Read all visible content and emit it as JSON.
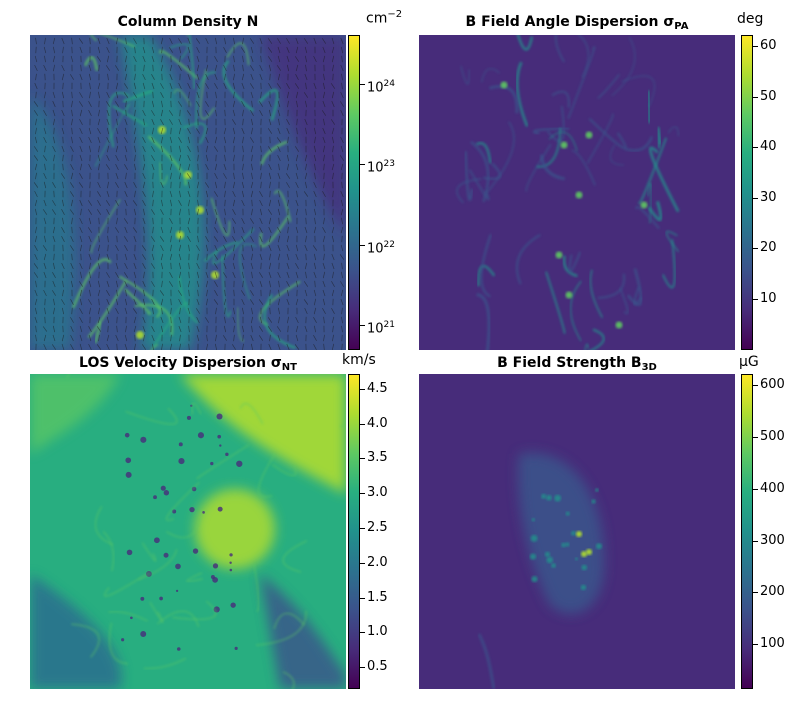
{
  "colormap": [
    "#440154",
    "#472c7a",
    "#3b528b",
    "#2c728e",
    "#21918c",
    "#28ae80",
    "#5ec962",
    "#addc30",
    "#fde725"
  ],
  "panels": [
    {
      "id": "column-density",
      "title_main": "Column Density N",
      "title_sub": "",
      "unit": "cm",
      "unit_sup": "−2",
      "scale": "log",
      "cbar_range": [
        5e+20,
        4e+24
      ],
      "ticks": [
        {
          "value": 1e+24,
          "base": "10",
          "exp": "24"
        },
        {
          "value": 1e+23,
          "base": "10",
          "exp": "23"
        },
        {
          "value": 1e+22,
          "base": "10",
          "exp": "22"
        },
        {
          "value": 1e+21,
          "base": "10",
          "exp": "21"
        }
      ],
      "vectors": true,
      "bg": "#3b528b"
    },
    {
      "id": "b-angle-dispersion",
      "title_main": "B Field Angle Dispersion σ",
      "title_sub": "PA",
      "unit": "deg",
      "unit_sup": "",
      "scale": "linear",
      "cbar_range": [
        0,
        62
      ],
      "ticks": [
        {
          "value": 60,
          "base": "60",
          "exp": ""
        },
        {
          "value": 50,
          "base": "50",
          "exp": ""
        },
        {
          "value": 40,
          "base": "40",
          "exp": ""
        },
        {
          "value": 30,
          "base": "30",
          "exp": ""
        },
        {
          "value": 20,
          "base": "20",
          "exp": ""
        },
        {
          "value": 10,
          "base": "10",
          "exp": ""
        }
      ],
      "vectors": false,
      "bg": "#472c7a"
    },
    {
      "id": "los-velocity-dispersion",
      "title_main": "LOS Velocity Dispersion σ",
      "title_sub": "NT",
      "unit": "km/s",
      "unit_sup": "",
      "scale": "linear",
      "cbar_range": [
        0.2,
        4.7
      ],
      "ticks": [
        {
          "value": 4.5,
          "base": "4.5",
          "exp": ""
        },
        {
          "value": 4.0,
          "base": "4.0",
          "exp": ""
        },
        {
          "value": 3.5,
          "base": "3.5",
          "exp": ""
        },
        {
          "value": 3.0,
          "base": "3.0",
          "exp": ""
        },
        {
          "value": 2.5,
          "base": "2.5",
          "exp": ""
        },
        {
          "value": 2.0,
          "base": "2.0",
          "exp": ""
        },
        {
          "value": 1.5,
          "base": "1.5",
          "exp": ""
        },
        {
          "value": 1.0,
          "base": "1.0",
          "exp": ""
        },
        {
          "value": 0.5,
          "base": "0.5",
          "exp": ""
        }
      ],
      "vectors": false,
      "bg": "#28ae80"
    },
    {
      "id": "b-field-strength",
      "title_main": "B Field Strength B",
      "title_sub": "3D",
      "unit": "μG",
      "unit_sup": "",
      "scale": "linear",
      "cbar_range": [
        15,
        620
      ],
      "ticks": [
        {
          "value": 600,
          "base": "600",
          "exp": ""
        },
        {
          "value": 500,
          "base": "500",
          "exp": ""
        },
        {
          "value": 400,
          "base": "400",
          "exp": ""
        },
        {
          "value": 300,
          "base": "300",
          "exp": ""
        },
        {
          "value": 200,
          "base": "200",
          "exp": ""
        },
        {
          "value": 100,
          "base": "100",
          "exp": ""
        }
      ],
      "vectors": false,
      "bg": "#472c7a"
    }
  ],
  "chart_data": [
    {
      "type": "heatmap",
      "title": "Column Density N",
      "colorbar_label": "cm⁻²",
      "scale": "log",
      "colorbar_ticks": [
        "10^24",
        "10^23",
        "10^22",
        "10^21"
      ],
      "range": [
        5e+20,
        4e+24
      ],
      "overlay": "polarization vectors"
    },
    {
      "type": "heatmap",
      "title": "B Field Angle Dispersion σPA",
      "colorbar_label": "deg",
      "scale": "linear",
      "colorbar_ticks": [
        60,
        50,
        40,
        30,
        20,
        10
      ],
      "range": [
        0,
        62
      ]
    },
    {
      "type": "heatmap",
      "title": "LOS Velocity Dispersion σNT",
      "colorbar_label": "km/s",
      "scale": "linear",
      "colorbar_ticks": [
        4.5,
        4.0,
        3.5,
        3.0,
        2.5,
        2.0,
        1.5,
        1.0,
        0.5
      ],
      "range": [
        0.2,
        4.7
      ]
    },
    {
      "type": "heatmap",
      "title": "B Field Strength B3D",
      "colorbar_label": "μG",
      "scale": "linear",
      "colorbar_ticks": [
        600,
        500,
        400,
        300,
        200,
        100
      ],
      "range": [
        15,
        620
      ]
    }
  ]
}
